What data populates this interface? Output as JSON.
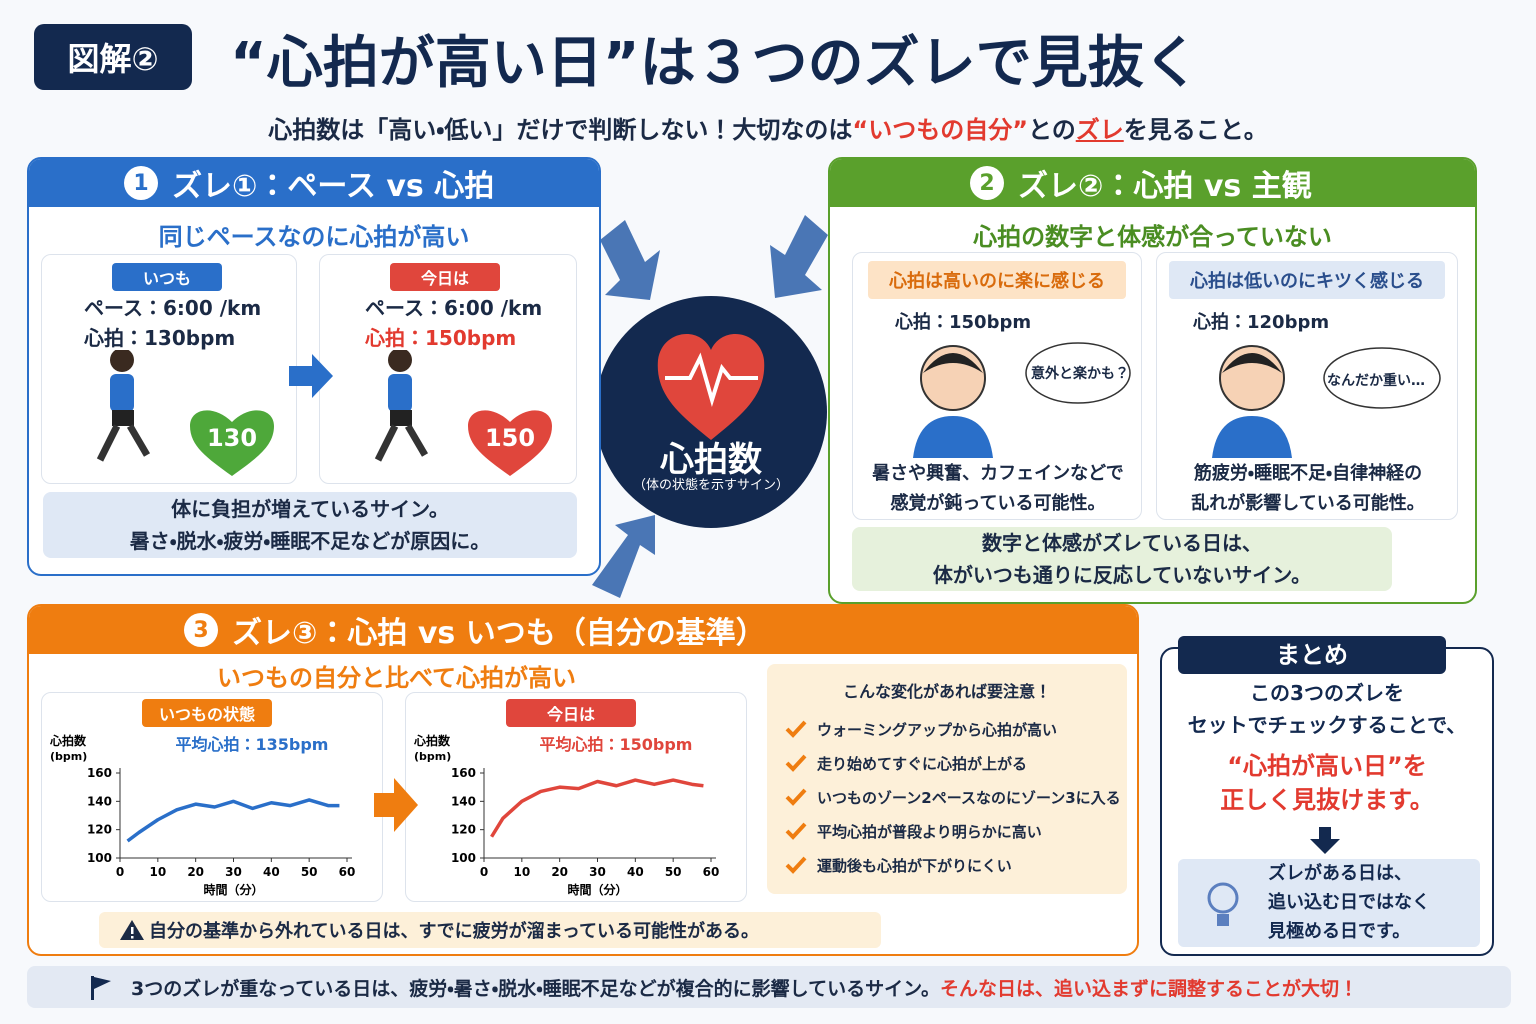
{
  "header": {
    "badge": "図解②",
    "title": "“心拍が高い日”は３つのズレで見抜く",
    "subtitle": [
      "心拍数は「高い・低い」だけで判断しない！大切なのは",
      "“いつもの自分”",
      "との",
      "ズレ",
      "を見ること。"
    ]
  },
  "center": {
    "label": "心拍数",
    "sub": "（体の状態を示すサイン）"
  },
  "section1": {
    "number": "1",
    "title": "ズレ①：ペース vs 心拍",
    "subtitle": "同じペースなのに心拍が高い",
    "cards": [
      {
        "tag": "いつも",
        "pace": "ペース：6:00 /km",
        "hr": "心拍：130bpm",
        "heart": "130"
      },
      {
        "tag": "今日は",
        "pace": "ペース：6:00 /km",
        "hr": "心拍：150bpm",
        "heart": "150"
      }
    ],
    "note": [
      "体に負担が増えているサイン。",
      "暑さ・脱水・疲労・睡眠不足などが原因に。"
    ]
  },
  "section2": {
    "number": "2",
    "title": "ズレ②：心拍 vs 主観",
    "subtitle": "心拍の数字と体感が合っていない",
    "cards": [
      {
        "tag": "心拍は高いのに楽に感じる",
        "hr": "心拍：150bpm",
        "bubble": "意外と楽かも？",
        "note": [
          "暑さや興奮、カフェインなどで",
          "感覚が鈍っている可能性。"
        ]
      },
      {
        "tag": "心拍は低いのにキツく感じる",
        "hr": "心拍：120bpm",
        "bubble": "なんだか重い…",
        "note": [
          "筋疲労・睡眠不足・自律神経の",
          "乱れが影響している可能性。"
        ]
      }
    ],
    "note": [
      "数字と体感がズレている日は、",
      "体がいつも通りに反応していないサイン。"
    ]
  },
  "section3": {
    "number": "3",
    "title": "ズレ③：心拍 vs いつも（自分の基準）",
    "subtitle": "いつもの自分と比べて心拍が高い",
    "charts": [
      {
        "type": "line",
        "tag": "いつもの状態",
        "ylabel": [
          "心拍数",
          "(bpm)"
        ],
        "avg": "平均心拍：135bpm",
        "xlabel": "時間（分）",
        "color": "#2a6fc9",
        "x": [
          2,
          5,
          10,
          15,
          20,
          25,
          30,
          35,
          40,
          45,
          50,
          55,
          58
        ],
        "values": [
          112,
          118,
          127,
          134,
          138,
          136,
          140,
          135,
          139,
          137,
          141,
          137,
          137
        ],
        "xlim": [
          0,
          60
        ],
        "ylim": [
          100,
          160
        ],
        "xticks": [
          0,
          10,
          20,
          30,
          40,
          50,
          60
        ],
        "yticks": [
          100,
          120,
          140,
          160
        ]
      },
      {
        "type": "line",
        "tag": "今日は",
        "ylabel": [
          "心拍数",
          "(bpm)"
        ],
        "avg": "平均心拍：150bpm",
        "xlabel": "時間（分）",
        "color": "#e0463c",
        "x": [
          2,
          5,
          10,
          15,
          20,
          25,
          30,
          35,
          40,
          45,
          50,
          55,
          58
        ],
        "values": [
          115,
          128,
          140,
          147,
          150,
          149,
          154,
          151,
          155,
          152,
          155,
          152,
          151
        ],
        "xlim": [
          0,
          60
        ],
        "ylim": [
          100,
          160
        ],
        "xticks": [
          0,
          10,
          20,
          30,
          40,
          50,
          60
        ],
        "yticks": [
          100,
          120,
          140,
          160
        ]
      }
    ],
    "checklist": {
      "title": "こんな変化があれば要注意！",
      "items": [
        "ウォーミングアップから心拍が高い",
        "走り始めてすぐに心拍が上がる",
        "いつものゾーン2ペースなのにゾーン3に入る",
        "平均心拍が普段より明らかに高い",
        "運動後も心拍が下がりにくい"
      ]
    },
    "warning": "自分の基準から外れている日は、すでに疲労が溜まっている可能性がある。"
  },
  "summary": {
    "title": "まとめ",
    "lines": [
      "この3つのズレを",
      "セットでチェックすることで、"
    ],
    "highlight": [
      "“心拍が高い日”を",
      "正しく見抜けます。"
    ],
    "tip": [
      "ズレがある日は、",
      "追い込む日ではなく",
      "見極める日です。"
    ]
  },
  "footer": {
    "text": "3つのズレが重なっている日は、疲労・暑さ・脱水・睡眠不足などが複合的に影響しているサイン。",
    "emphasis": "そんな日は、追い込まずに調整することが大切！"
  }
}
